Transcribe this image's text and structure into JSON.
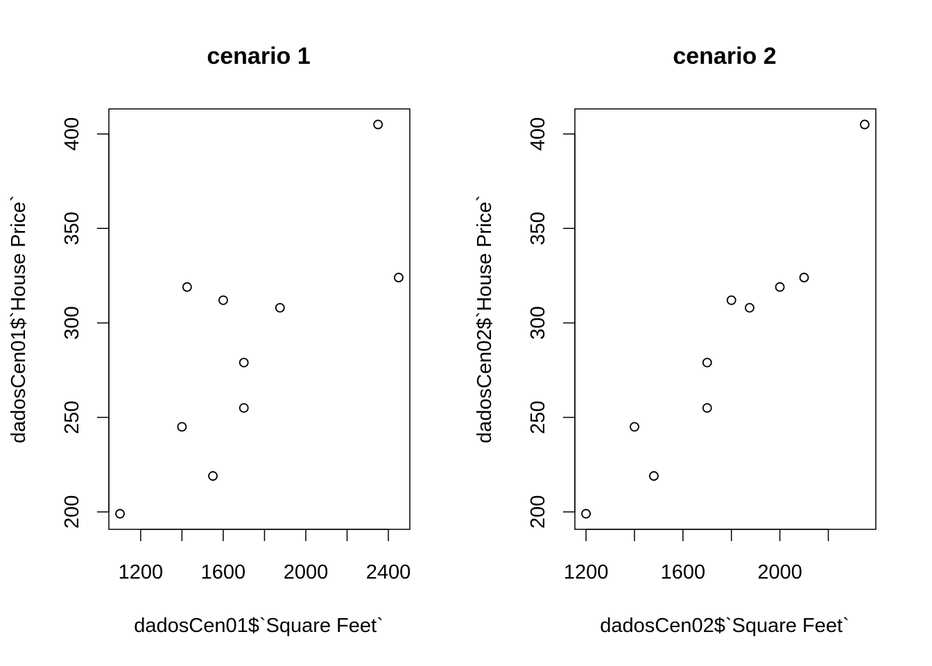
{
  "chart_data": [
    {
      "type": "scatter",
      "title": "cenario 1",
      "xlabel": "dadosCen01$`Square Feet`",
      "ylabel": "dadosCen01$`House Price`",
      "x": [
        1400,
        1600,
        1700,
        1875,
        1100,
        1550,
        2350,
        2450,
        1425,
        1700
      ],
      "y": [
        245,
        312,
        279,
        308,
        199,
        219,
        405,
        324,
        319,
        255
      ],
      "xlim": [
        1046,
        2504
      ],
      "ylim": [
        190.76,
        413.24
      ],
      "xticks": [
        1200,
        1400,
        1600,
        1800,
        2000,
        2200,
        2400
      ],
      "xtick_labels": [
        "1200",
        "",
        "1600",
        "",
        "2000",
        "",
        "2400"
      ],
      "yticks": [
        200,
        250,
        300,
        350,
        400
      ],
      "ytick_labels": [
        "200",
        "250",
        "300",
        "350",
        "400"
      ],
      "marker": "open-circle",
      "grid": false
    },
    {
      "type": "scatter",
      "title": "cenario 2",
      "xlabel": "dadosCen02$`Square Feet`",
      "ylabel": "dadosCen02$`House Price`",
      "x": [
        1400,
        1800,
        1700,
        1875,
        1200,
        1480,
        2350,
        2100,
        2000,
        1700
      ],
      "y": [
        245,
        312,
        279,
        308,
        199,
        219,
        405,
        324,
        319,
        255
      ],
      "xlim": [
        1154,
        2396
      ],
      "ylim": [
        190.76,
        413.24
      ],
      "xticks": [
        1200,
        1400,
        1600,
        1800,
        2000,
        2200
      ],
      "xtick_labels": [
        "1200",
        "",
        "1600",
        "",
        "2000",
        ""
      ],
      "yticks": [
        200,
        250,
        300,
        350,
        400
      ],
      "ytick_labels": [
        "200",
        "250",
        "300",
        "350",
        "400"
      ],
      "marker": "open-circle",
      "grid": false
    }
  ]
}
